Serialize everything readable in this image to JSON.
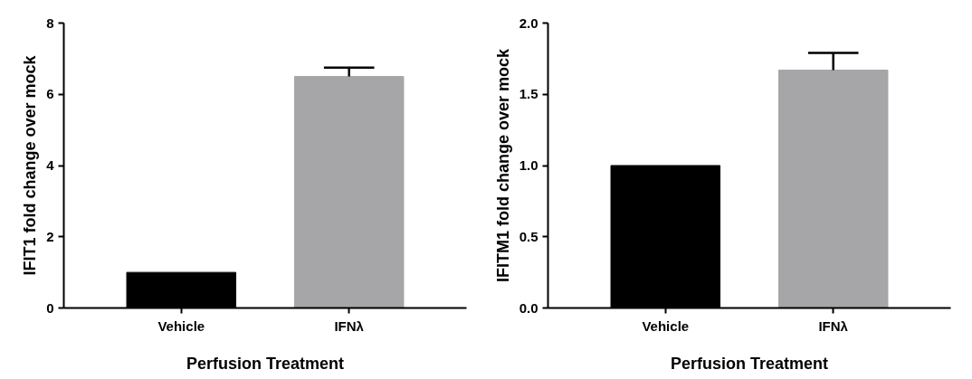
{
  "chart_data": [
    {
      "type": "bar",
      "categories": [
        "Vehicle",
        "IFNλ"
      ],
      "values": [
        1.0,
        6.5
      ],
      "colors": [
        "#000000",
        "#a6a6a8"
      ],
      "errors": [
        null,
        [
          6.5,
          6.75
        ]
      ],
      "xlabel": "Perfusion Treatment",
      "ylabel": "IFIT1 fold change over mock",
      "ylim": [
        0,
        8
      ],
      "yticks": [
        0,
        2,
        4,
        6,
        8
      ],
      "grid": false
    },
    {
      "type": "bar",
      "categories": [
        "Vehicle",
        "IFNλ"
      ],
      "values": [
        1.0,
        1.67
      ],
      "colors": [
        "#000000",
        "#a6a6a8"
      ],
      "errors": [
        null,
        [
          1.67,
          1.79
        ]
      ],
      "xlabel": "Perfusion Treatment",
      "ylabel": "IFITM1 fold change over mock",
      "ylim": [
        0,
        2.0
      ],
      "yticks": [
        {
          "value": 0,
          "label": "0.0"
        },
        {
          "value": 0.5,
          "label": "0.5"
        },
        {
          "value": 1.0,
          "label": "1.0"
        },
        {
          "value": 1.5,
          "label": "1.5"
        },
        {
          "value": 2.0,
          "label": "2.0"
        }
      ],
      "grid": false
    }
  ]
}
